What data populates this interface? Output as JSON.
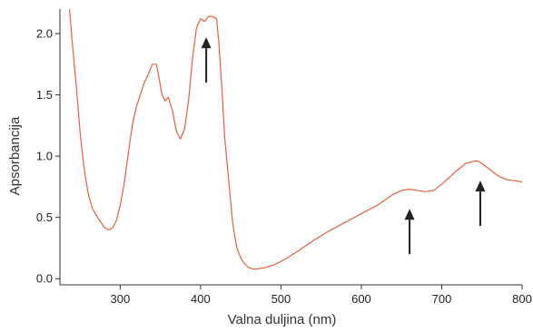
{
  "chart_data": {
    "type": "line",
    "title": "",
    "xlabel": "Valna duljina (nm)",
    "ylabel": "Apsorbancija",
    "xlim": [
      225,
      800
    ],
    "ylim": [
      -0.05,
      2.2
    ],
    "x_ticks": [
      300,
      400,
      500,
      600,
      700,
      800
    ],
    "x_tick_labels": [
      "300",
      "400",
      "500",
      "600",
      "700",
      "800"
    ],
    "y_ticks": [
      0.0,
      0.5,
      1.0,
      1.5,
      2.0
    ],
    "y_tick_labels": [
      "0.0",
      "0.5",
      "1.0",
      "1.5",
      "2.0"
    ],
    "grid": false,
    "legend": "none",
    "line_color": "#e8603c",
    "arrow_color": "#222222",
    "series": [
      {
        "x": [
          237,
          240,
          245,
          250,
          255,
          260,
          265,
          270,
          275,
          280,
          285,
          290,
          295,
          300,
          305,
          310,
          315,
          320,
          325,
          330,
          335,
          340,
          345,
          348,
          352,
          356,
          360,
          365,
          370,
          375,
          380,
          385,
          390,
          395,
          400,
          405,
          410,
          415,
          420,
          423,
          427,
          430,
          435,
          440,
          445,
          450,
          455,
          460,
          465,
          470,
          480,
          490,
          500,
          520,
          540,
          560,
          580,
          600,
          620,
          640,
          650,
          660,
          670,
          680,
          690,
          700,
          710,
          720,
          730,
          740,
          745,
          750,
          760,
          770,
          780,
          790,
          800
        ],
        "y": [
          2.2,
          1.95,
          1.6,
          1.2,
          0.9,
          0.7,
          0.58,
          0.52,
          0.47,
          0.42,
          0.4,
          0.41,
          0.47,
          0.6,
          0.78,
          1.02,
          1.25,
          1.4,
          1.5,
          1.6,
          1.67,
          1.75,
          1.75,
          1.65,
          1.5,
          1.45,
          1.48,
          1.37,
          1.2,
          1.14,
          1.22,
          1.45,
          1.8,
          2.05,
          2.12,
          2.1,
          2.14,
          2.14,
          2.12,
          1.9,
          1.5,
          1.15,
          0.8,
          0.45,
          0.25,
          0.17,
          0.12,
          0.09,
          0.08,
          0.08,
          0.09,
          0.11,
          0.14,
          0.22,
          0.31,
          0.39,
          0.46,
          0.53,
          0.6,
          0.69,
          0.72,
          0.73,
          0.72,
          0.71,
          0.72,
          0.77,
          0.83,
          0.89,
          0.94,
          0.96,
          0.96,
          0.94,
          0.89,
          0.84,
          0.81,
          0.8,
          0.79
        ]
      }
    ],
    "annotations": [
      {
        "type": "arrow",
        "x": 407,
        "y_from": 1.6,
        "y_to": 1.97
      },
      {
        "type": "arrow",
        "x": 660,
        "y_from": 0.2,
        "y_to": 0.57
      },
      {
        "type": "arrow",
        "x": 748,
        "y_from": 0.43,
        "y_to": 0.8
      }
    ]
  }
}
